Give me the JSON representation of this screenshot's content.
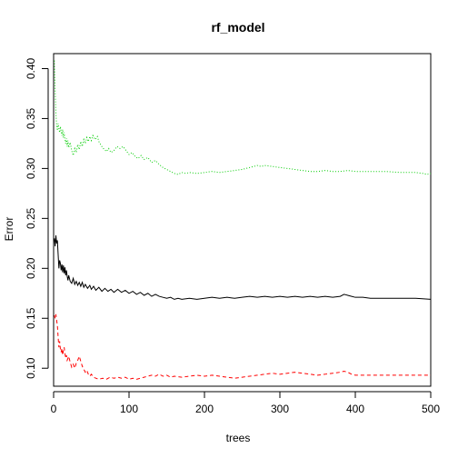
{
  "chart_data": {
    "type": "line",
    "title": "rf_model",
    "xlabel": "trees",
    "ylabel": "Error",
    "xlim": [
      0,
      500
    ],
    "ylim": [
      0.082,
      0.415
    ],
    "xticks": [
      0,
      100,
      200,
      300,
      400,
      500
    ],
    "yticks": [
      0.1,
      0.15,
      0.2,
      0.25,
      0.3,
      0.35,
      0.4
    ],
    "xtick_labels": [
      "0",
      "100",
      "200",
      "300",
      "400",
      "500"
    ],
    "ytick_labels": [
      "0.10",
      "0.15",
      "0.20",
      "0.25",
      "0.30",
      "0.35",
      "0.40"
    ],
    "grid": false,
    "legend": "none",
    "series": [
      {
        "color": "#000000",
        "linestyle": "solid",
        "points": [
          [
            1,
            0.23
          ],
          [
            2,
            0.222
          ],
          [
            3,
            0.233
          ],
          [
            4,
            0.225
          ],
          [
            5,
            0.228
          ],
          [
            6,
            0.214
          ],
          [
            7,
            0.2
          ],
          [
            8,
            0.208
          ],
          [
            9,
            0.205
          ],
          [
            10,
            0.198
          ],
          [
            11,
            0.204
          ],
          [
            12,
            0.196
          ],
          [
            13,
            0.203
          ],
          [
            14,
            0.195
          ],
          [
            15,
            0.201
          ],
          [
            16,
            0.193
          ],
          [
            17,
            0.198
          ],
          [
            18,
            0.192
          ],
          [
            19,
            0.188
          ],
          [
            20,
            0.193
          ],
          [
            22,
            0.187
          ],
          [
            24,
            0.185
          ],
          [
            26,
            0.19
          ],
          [
            28,
            0.184
          ],
          [
            30,
            0.187
          ],
          [
            32,
            0.183
          ],
          [
            34,
            0.186
          ],
          [
            36,
            0.182
          ],
          [
            38,
            0.186
          ],
          [
            40,
            0.181
          ],
          [
            42,
            0.184
          ],
          [
            45,
            0.18
          ],
          [
            48,
            0.183
          ],
          [
            50,
            0.179
          ],
          [
            53,
            0.182
          ],
          [
            56,
            0.178
          ],
          [
            60,
            0.181
          ],
          [
            64,
            0.177
          ],
          [
            68,
            0.18
          ],
          [
            72,
            0.177
          ],
          [
            76,
            0.179
          ],
          [
            80,
            0.176
          ],
          [
            85,
            0.179
          ],
          [
            90,
            0.176
          ],
          [
            95,
            0.178
          ],
          [
            100,
            0.175
          ],
          [
            105,
            0.177
          ],
          [
            110,
            0.174
          ],
          [
            115,
            0.176
          ],
          [
            120,
            0.173
          ],
          [
            125,
            0.175
          ],
          [
            130,
            0.172
          ],
          [
            135,
            0.174
          ],
          [
            140,
            0.172
          ],
          [
            145,
            0.171
          ],
          [
            150,
            0.17
          ],
          [
            155,
            0.171
          ],
          [
            160,
            0.169
          ],
          [
            165,
            0.17
          ],
          [
            170,
            0.169
          ],
          [
            180,
            0.17
          ],
          [
            190,
            0.169
          ],
          [
            200,
            0.17
          ],
          [
            210,
            0.171
          ],
          [
            220,
            0.17
          ],
          [
            230,
            0.171
          ],
          [
            240,
            0.17
          ],
          [
            250,
            0.171
          ],
          [
            260,
            0.172
          ],
          [
            270,
            0.171
          ],
          [
            280,
            0.172
          ],
          [
            290,
            0.171
          ],
          [
            300,
            0.172
          ],
          [
            310,
            0.171
          ],
          [
            320,
            0.172
          ],
          [
            330,
            0.171
          ],
          [
            340,
            0.172
          ],
          [
            350,
            0.171
          ],
          [
            360,
            0.172
          ],
          [
            370,
            0.171
          ],
          [
            380,
            0.172
          ],
          [
            385,
            0.174
          ],
          [
            390,
            0.173
          ],
          [
            395,
            0.172
          ],
          [
            400,
            0.171
          ],
          [
            410,
            0.171
          ],
          [
            420,
            0.17
          ],
          [
            440,
            0.17
          ],
          [
            460,
            0.17
          ],
          [
            480,
            0.17
          ],
          [
            500,
            0.169
          ]
        ]
      },
      {
        "color": "#ff0000",
        "linestyle": "dashed",
        "points": [
          [
            1,
            0.153
          ],
          [
            2,
            0.15
          ],
          [
            3,
            0.154
          ],
          [
            4,
            0.148
          ],
          [
            5,
            0.143
          ],
          [
            6,
            0.131
          ],
          [
            7,
            0.121
          ],
          [
            8,
            0.127
          ],
          [
            9,
            0.119
          ],
          [
            10,
            0.116
          ],
          [
            11,
            0.12
          ],
          [
            12,
            0.113
          ],
          [
            13,
            0.118
          ],
          [
            14,
            0.121
          ],
          [
            15,
            0.115
          ],
          [
            16,
            0.11
          ],
          [
            17,
            0.113
          ],
          [
            18,
            0.108
          ],
          [
            20,
            0.112
          ],
          [
            22,
            0.106
          ],
          [
            24,
            0.101
          ],
          [
            26,
            0.104
          ],
          [
            28,
            0.1
          ],
          [
            30,
            0.105
          ],
          [
            32,
            0.108
          ],
          [
            34,
            0.112
          ],
          [
            36,
            0.107
          ],
          [
            38,
            0.102
          ],
          [
            40,
            0.099
          ],
          [
            42,
            0.096
          ],
          [
            44,
            0.098
          ],
          [
            46,
            0.094
          ],
          [
            48,
            0.092
          ],
          [
            50,
            0.094
          ],
          [
            53,
            0.091
          ],
          [
            56,
            0.09
          ],
          [
            60,
            0.089
          ],
          [
            65,
            0.09
          ],
          [
            70,
            0.089
          ],
          [
            75,
            0.091
          ],
          [
            80,
            0.09
          ],
          [
            85,
            0.091
          ],
          [
            90,
            0.09
          ],
          [
            95,
            0.091
          ],
          [
            100,
            0.089
          ],
          [
            105,
            0.09
          ],
          [
            110,
            0.089
          ],
          [
            115,
            0.09
          ],
          [
            120,
            0.091
          ],
          [
            125,
            0.092
          ],
          [
            130,
            0.093
          ],
          [
            135,
            0.092
          ],
          [
            140,
            0.094
          ],
          [
            145,
            0.092
          ],
          [
            150,
            0.093
          ],
          [
            155,
            0.091
          ],
          [
            160,
            0.092
          ],
          [
            170,
            0.091
          ],
          [
            180,
            0.092
          ],
          [
            190,
            0.093
          ],
          [
            200,
            0.092
          ],
          [
            210,
            0.093
          ],
          [
            220,
            0.092
          ],
          [
            230,
            0.091
          ],
          [
            240,
            0.09
          ],
          [
            250,
            0.091
          ],
          [
            260,
            0.092
          ],
          [
            270,
            0.093
          ],
          [
            280,
            0.094
          ],
          [
            290,
            0.095
          ],
          [
            300,
            0.094
          ],
          [
            310,
            0.095
          ],
          [
            320,
            0.096
          ],
          [
            330,
            0.095
          ],
          [
            340,
            0.094
          ],
          [
            350,
            0.093
          ],
          [
            360,
            0.094
          ],
          [
            370,
            0.095
          ],
          [
            380,
            0.096
          ],
          [
            385,
            0.097
          ],
          [
            390,
            0.096
          ],
          [
            395,
            0.094
          ],
          [
            400,
            0.093
          ],
          [
            410,
            0.093
          ],
          [
            420,
            0.093
          ],
          [
            440,
            0.093
          ],
          [
            460,
            0.093
          ],
          [
            480,
            0.093
          ],
          [
            500,
            0.093
          ]
        ]
      },
      {
        "color": "#00cc00",
        "linestyle": "dotted",
        "points": [
          [
            1,
            0.408
          ],
          [
            2,
            0.38
          ],
          [
            3,
            0.356
          ],
          [
            4,
            0.343
          ],
          [
            5,
            0.338
          ],
          [
            6,
            0.345
          ],
          [
            7,
            0.34
          ],
          [
            8,
            0.336
          ],
          [
            9,
            0.342
          ],
          [
            10,
            0.337
          ],
          [
            11,
            0.333
          ],
          [
            12,
            0.339
          ],
          [
            13,
            0.331
          ],
          [
            14,
            0.336
          ],
          [
            15,
            0.329
          ],
          [
            16,
            0.325
          ],
          [
            17,
            0.33
          ],
          [
            18,
            0.322
          ],
          [
            19,
            0.328
          ],
          [
            20,
            0.321
          ],
          [
            22,
            0.326
          ],
          [
            24,
            0.318
          ],
          [
            26,
            0.313
          ],
          [
            28,
            0.32
          ],
          [
            30,
            0.316
          ],
          [
            32,
            0.324
          ],
          [
            34,
            0.319
          ],
          [
            36,
            0.327
          ],
          [
            38,
            0.322
          ],
          [
            40,
            0.329
          ],
          [
            42,
            0.325
          ],
          [
            44,
            0.331
          ],
          [
            46,
            0.327
          ],
          [
            48,
            0.332
          ],
          [
            50,
            0.328
          ],
          [
            52,
            0.333
          ],
          [
            55,
            0.329
          ],
          [
            58,
            0.332
          ],
          [
            60,
            0.327
          ],
          [
            63,
            0.323
          ],
          [
            66,
            0.32
          ],
          [
            70,
            0.317
          ],
          [
            73,
            0.32
          ],
          [
            76,
            0.316
          ],
          [
            80,
            0.318
          ],
          [
            84,
            0.322
          ],
          [
            88,
            0.32
          ],
          [
            92,
            0.322
          ],
          [
            96,
            0.318
          ],
          [
            100,
            0.314
          ],
          [
            104,
            0.316
          ],
          [
            108,
            0.312
          ],
          [
            112,
            0.31
          ],
          [
            116,
            0.313
          ],
          [
            120,
            0.309
          ],
          [
            125,
            0.311
          ],
          [
            130,
            0.306
          ],
          [
            135,
            0.308
          ],
          [
            140,
            0.304
          ],
          [
            145,
            0.301
          ],
          [
            150,
            0.299
          ],
          [
            155,
            0.297
          ],
          [
            160,
            0.295
          ],
          [
            165,
            0.294
          ],
          [
            170,
            0.296
          ],
          [
            175,
            0.295
          ],
          [
            180,
            0.296
          ],
          [
            190,
            0.295
          ],
          [
            200,
            0.296
          ],
          [
            210,
            0.297
          ],
          [
            220,
            0.296
          ],
          [
            230,
            0.297
          ],
          [
            240,
            0.298
          ],
          [
            250,
            0.299
          ],
          [
            260,
            0.301
          ],
          [
            270,
            0.303
          ],
          [
            275,
            0.302
          ],
          [
            280,
            0.303
          ],
          [
            290,
            0.302
          ],
          [
            300,
            0.301
          ],
          [
            310,
            0.3
          ],
          [
            320,
            0.299
          ],
          [
            330,
            0.298
          ],
          [
            340,
            0.297
          ],
          [
            350,
            0.297
          ],
          [
            360,
            0.298
          ],
          [
            370,
            0.297
          ],
          [
            380,
            0.297
          ],
          [
            390,
            0.298
          ],
          [
            400,
            0.297
          ],
          [
            410,
            0.297
          ],
          [
            420,
            0.297
          ],
          [
            440,
            0.297
          ],
          [
            460,
            0.296
          ],
          [
            480,
            0.296
          ],
          [
            490,
            0.295
          ],
          [
            495,
            0.294
          ],
          [
            500,
            0.295
          ]
        ]
      }
    ]
  }
}
